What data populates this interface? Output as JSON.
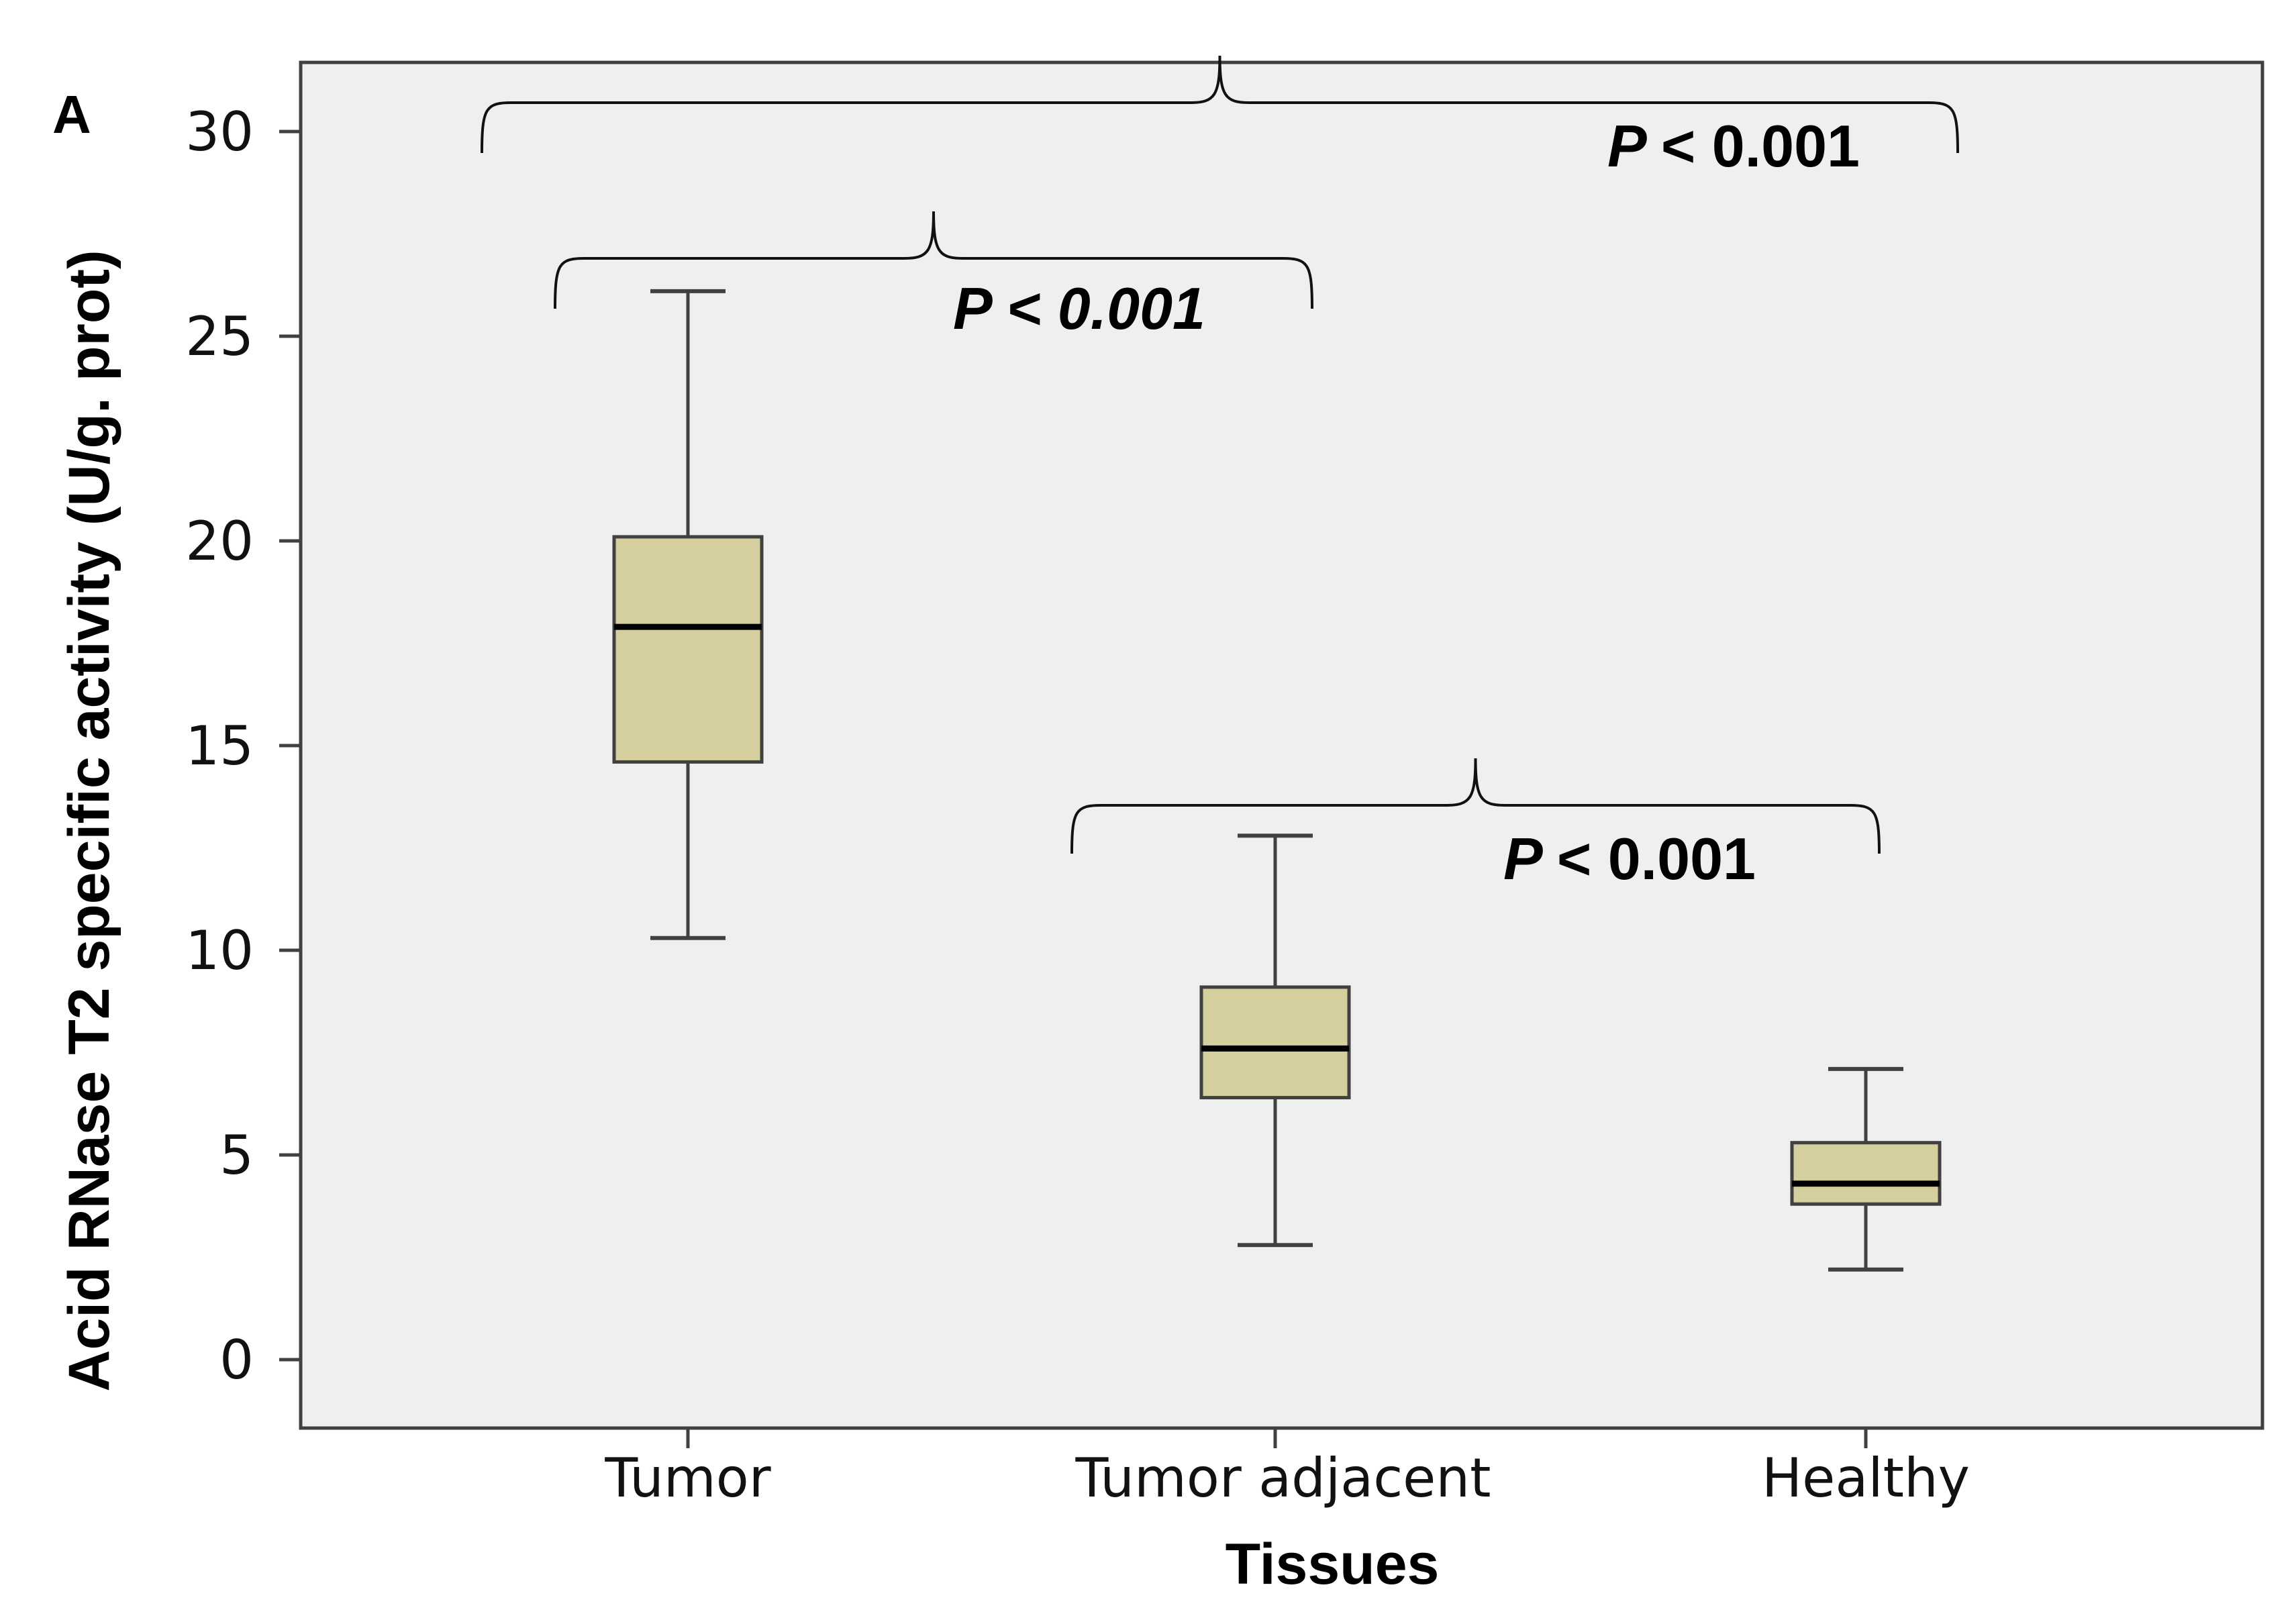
{
  "chart_data": {
    "type": "box",
    "panel_label": "A",
    "title": "",
    "xlabel": "Tissues",
    "ylabel": "Acid RNase T2 specific activity (U/g. prot)",
    "ylim": [
      -1.7,
      31.7
    ],
    "yticks": [
      0,
      5,
      10,
      15,
      20,
      25,
      30
    ],
    "grid": false,
    "legend": "none",
    "categories": [
      "Tumor",
      "Tumor adjacent",
      "Healthy"
    ],
    "boxes": [
      {
        "category": "Tumor",
        "min": 10.3,
        "q1": 14.6,
        "median": 17.9,
        "q3": 20.1,
        "max": 26.1
      },
      {
        "category": "Tumor adjacent",
        "min": 2.8,
        "q1": 6.4,
        "median": 7.6,
        "q3": 9.1,
        "max": 12.8
      },
      {
        "category": "Healthy",
        "min": 2.2,
        "q1": 3.8,
        "median": 4.3,
        "q3": 5.3,
        "max": 7.1
      }
    ],
    "comparisons": [
      {
        "groups": [
          "Tumor",
          "Tumor adjacent"
        ],
        "label": "P < 0.001"
      },
      {
        "groups": [
          "Tumor adjacent",
          "Healthy"
        ],
        "label": "P < 0.001"
      },
      {
        "groups": [
          "Tumor",
          "Healthy"
        ],
        "label": "P < 0.001"
      }
    ],
    "colors": {
      "panel_background": "#efefef",
      "box_fill": "#d4cf9c",
      "box_stroke": "#404040",
      "median": "#000000",
      "axis": "#404040"
    }
  }
}
